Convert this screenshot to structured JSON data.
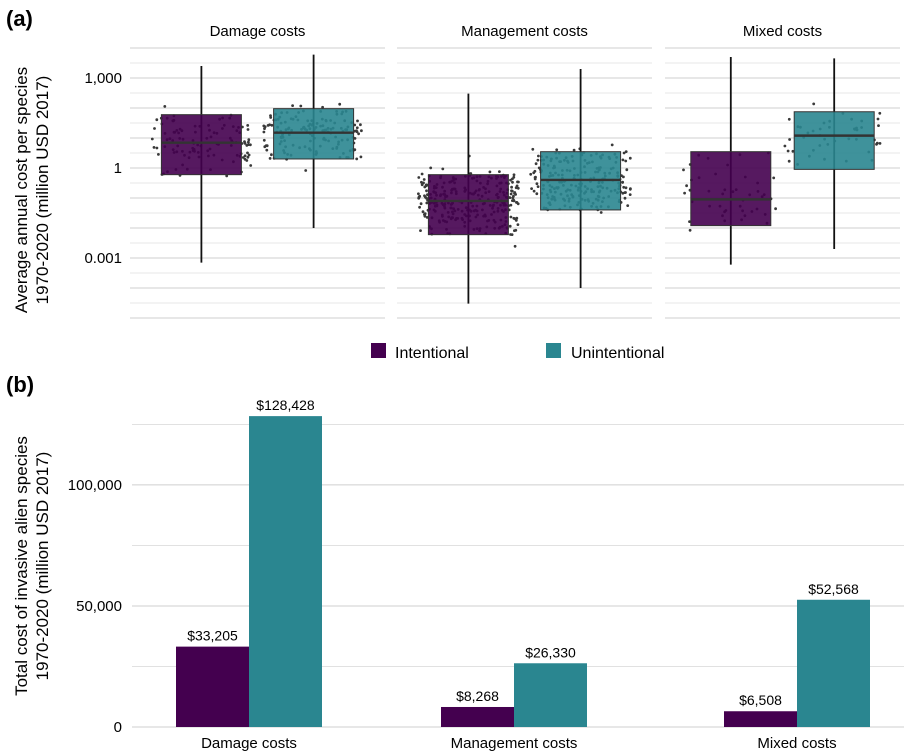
{
  "colors": {
    "intentional": "#44004f",
    "unintentional": "#2a8690",
    "median_line": "#333333",
    "whisker": "#111111",
    "points": "#3a3a3a",
    "grid": "#cfcfcf"
  },
  "panel_a": {
    "letter": "(a)",
    "ylabel_line1": "Average annual cost per species",
    "ylabel_line2": "1970-2020 (million USD 2017)"
  },
  "panel_b": {
    "letter": "(b)",
    "ylabel_line1": "Total cost of invasive alien species",
    "ylabel_line2": "1970-2020 (million USD 2017)"
  },
  "legend": {
    "intentional": "Intentional",
    "unintentional": "Unintentional"
  },
  "chart_data": [
    {
      "type": "box",
      "panel": "a",
      "scale": "log10",
      "ylim": [
        1e-05,
        10000
      ],
      "yticks": [
        0.001,
        1,
        1000
      ],
      "ytick_labels": [
        "0.001",
        "1",
        "1,000"
      ],
      "facets": [
        {
          "title": "Damage costs",
          "boxes": [
            {
              "group": "Intentional",
              "whisker_low": 0.0007,
              "q1": 0.6,
              "median": 7,
              "q3": 60,
              "whisker_high": 2500,
              "n_points": 110
            },
            {
              "group": "Unintentional",
              "whisker_low": 0.01,
              "q1": 2,
              "median": 15,
              "q3": 95,
              "whisker_high": 6000,
              "n_points": 150
            }
          ]
        },
        {
          "title": "Management costs",
          "boxes": [
            {
              "group": "Intentional",
              "whisker_low": 3e-05,
              "q1": 0.006,
              "median": 0.08,
              "q3": 0.6,
              "whisker_high": 300,
              "n_points": 300
            },
            {
              "group": "Unintentional",
              "whisker_low": 0.0001,
              "q1": 0.04,
              "median": 0.4,
              "q3": 3.5,
              "whisker_high": 2000,
              "n_points": 230
            }
          ]
        },
        {
          "title": "Mixed costs",
          "boxes": [
            {
              "group": "Intentional",
              "whisker_low": 0.0006,
              "q1": 0.012,
              "median": 0.09,
              "q3": 3.5,
              "whisker_high": 5000,
              "n_points": 45
            },
            {
              "group": "Unintentional",
              "whisker_low": 0.002,
              "q1": 0.9,
              "median": 12,
              "q3": 75,
              "whisker_high": 4500,
              "n_points": 45
            }
          ]
        }
      ]
    },
    {
      "type": "bar",
      "panel": "b",
      "categories": [
        "Damage costs",
        "Management costs",
        "Mixed costs"
      ],
      "series": [
        {
          "name": "Intentional",
          "values": [
            33205,
            8268,
            6508
          ]
        },
        {
          "name": "Unintentional",
          "values": [
            128428,
            26330,
            52568
          ]
        }
      ],
      "value_labels": {
        "Intentional": [
          "$33,205",
          "$8,268",
          "$6,508"
        ],
        "Unintentional": [
          "$128,428",
          "$26,330",
          "$52,568"
        ]
      },
      "ylim": [
        0,
        125000
      ],
      "yticks": [
        0,
        50000,
        100000
      ],
      "ytick_labels": [
        "0",
        "50,000",
        "100,000"
      ],
      "grid": true,
      "legend": "top-center"
    }
  ]
}
